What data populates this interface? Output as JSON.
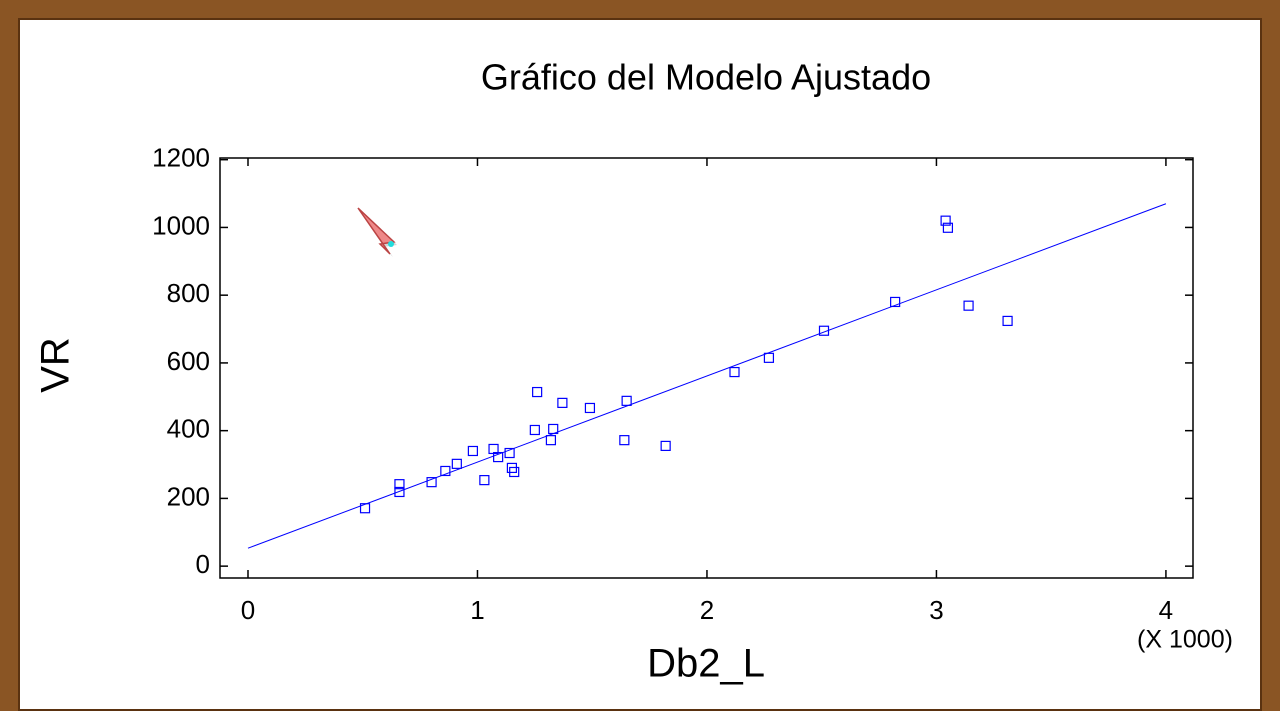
{
  "chart_data": {
    "type": "scatter",
    "title": "Gráfico del Modelo Ajustado",
    "xlabel": "Db2_L",
    "ylabel": "VR",
    "x_multiplier": "(X 1000)",
    "color": "#0000ff",
    "x": [
      0.51,
      0.66,
      0.66,
      0.8,
      0.86,
      0.91,
      0.98,
      1.03,
      1.07,
      1.09,
      1.14,
      1.15,
      1.16,
      1.26,
      1.25,
      1.32,
      1.33,
      1.37,
      1.49,
      1.64,
      1.65,
      1.82,
      2.12,
      2.27,
      2.51,
      2.82,
      3.04,
      3.05,
      3.14,
      3.31
    ],
    "values": [
      171,
      219,
      242,
      248,
      281,
      302,
      340,
      254,
      346,
      322,
      334,
      290,
      278,
      514,
      402,
      372,
      405,
      482,
      467,
      372,
      488,
      355,
      573,
      615,
      695,
      780,
      1020,
      999,
      769,
      724
    ],
    "fit": {
      "x": [
        0,
        4
      ],
      "y": [
        53,
        1070
      ]
    },
    "xlim": [
      -0.122,
      4.118
    ],
    "ylim": [
      -35,
      1205
    ],
    "xticks": [
      0,
      1,
      2,
      3,
      4
    ],
    "yticks": [
      0,
      200,
      400,
      600,
      800,
      1000,
      1200
    ]
  }
}
